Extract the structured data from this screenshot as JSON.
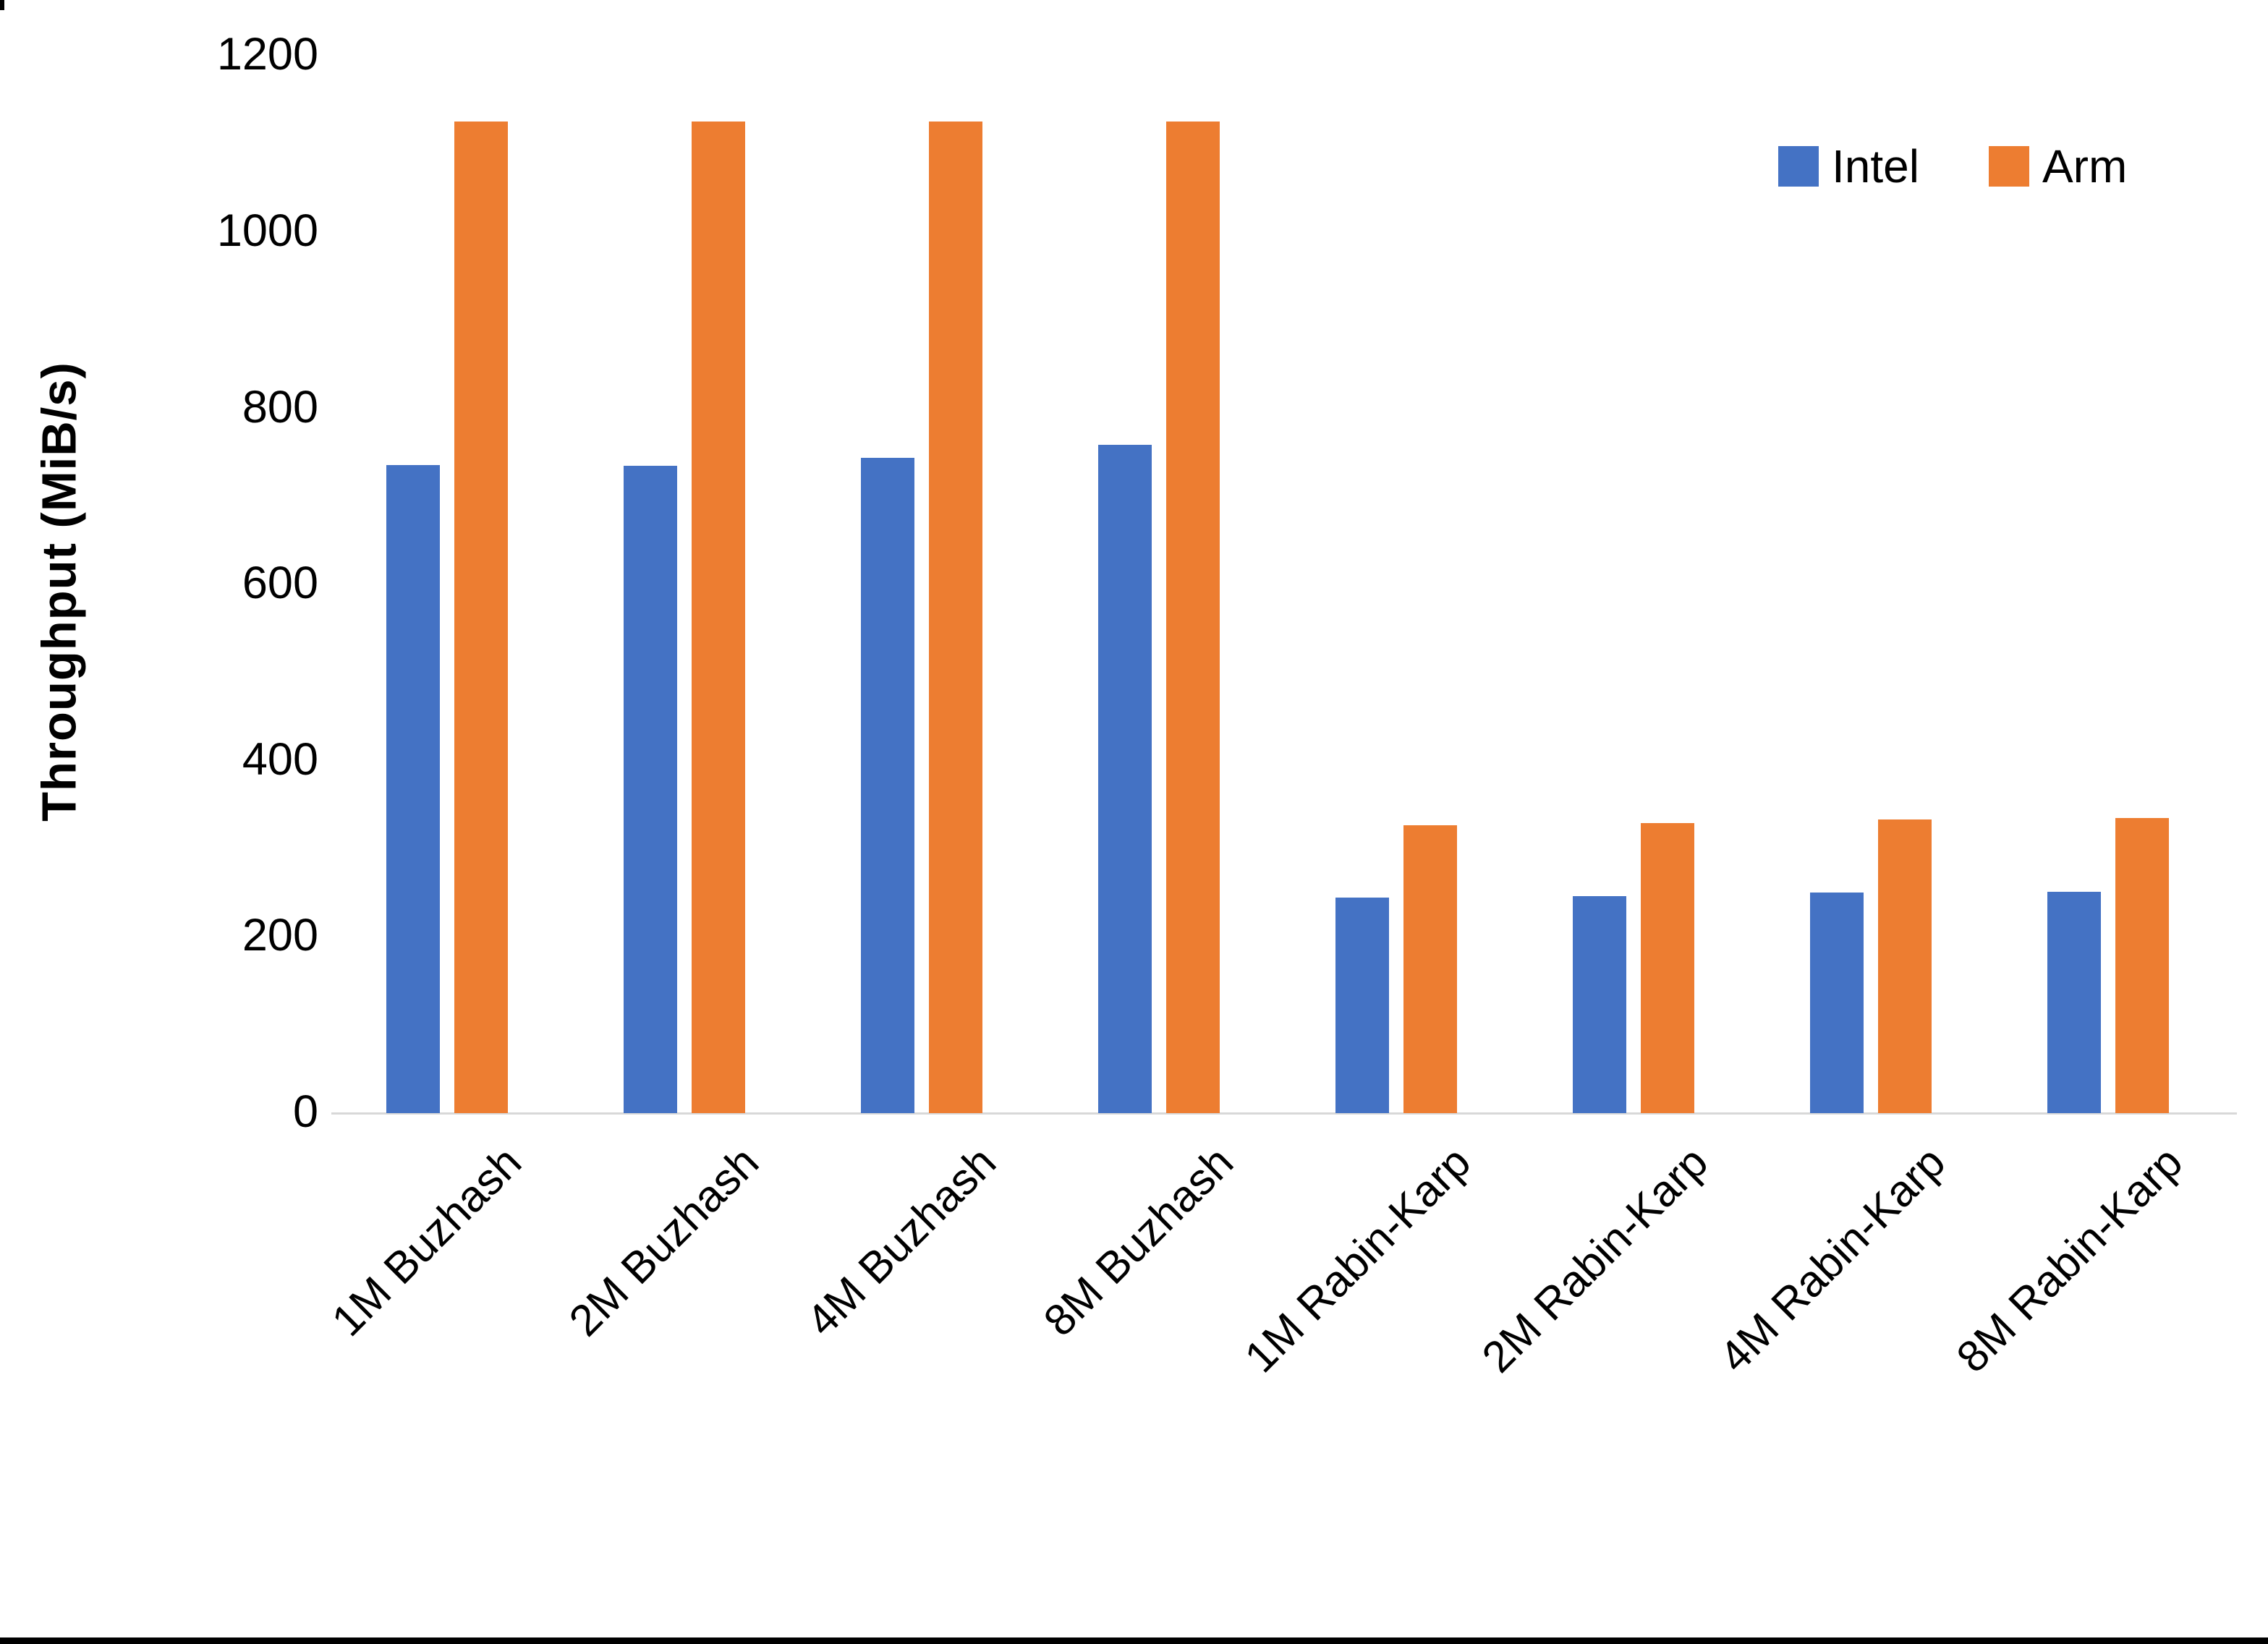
{
  "chart_data": {
    "type": "bar",
    "title": "",
    "ylabel": "Throughput (MiB/s)",
    "xlabel": "",
    "ylim": [
      0,
      1200
    ],
    "yticks": [
      0,
      200,
      400,
      600,
      800,
      1000,
      1200
    ],
    "grid": false,
    "legend_position": "top-right",
    "categories": [
      "1M Buzhash",
      "2M Buzhash",
      "4M Buzhash",
      "8M Buzhash",
      "1M Rabin-Karp",
      "2M Rabin-Karp",
      "4M Rabin-Karp",
      "8M Rabin-Karp"
    ],
    "series": [
      {
        "name": "Intel",
        "color": "#4472C4",
        "values": [
          736,
          735,
          744,
          759,
          245,
          246,
          250,
          251
        ]
      },
      {
        "name": "Arm",
        "color": "#ED7D31",
        "values": [
          1126,
          1126,
          1126,
          1126,
          327,
          329,
          333,
          335
        ]
      }
    ]
  },
  "legend": [
    {
      "label": "Intel",
      "color": "#4472C4"
    },
    {
      "label": "Arm",
      "color": "#ED7D31"
    }
  ],
  "colors": {
    "axis_line": "#D8D8D8",
    "text": "#000000",
    "background": "#FFFFFF",
    "bottom_edge": "#000000"
  }
}
